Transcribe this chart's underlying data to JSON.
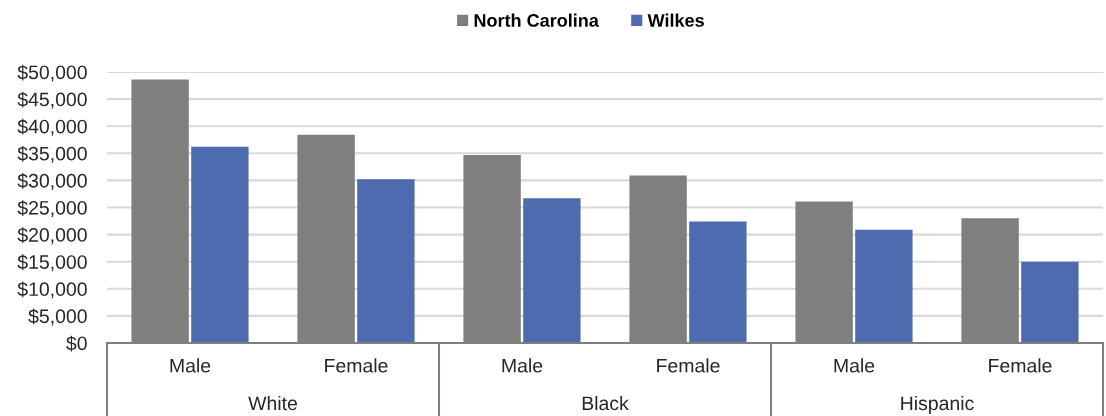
{
  "chart_data": {
    "type": "bar",
    "categories": [
      "Male",
      "Female",
      "Male",
      "Female",
      "Male",
      "Female"
    ],
    "series": [
      {
        "name": "North Carolina",
        "color": "#7f7f7f",
        "values": [
          48600,
          38400,
          34700,
          30900,
          26100,
          23000
        ]
      },
      {
        "name": "Wilkes",
        "color": "#4f6bb0",
        "values": [
          36200,
          30200,
          26700,
          22400,
          20900,
          15000
        ]
      }
    ],
    "ylim": [
      0,
      50000
    ],
    "yticks": [
      {
        "value": 0,
        "label": "$0"
      },
      {
        "value": 5000,
        "label": "$5,000"
      },
      {
        "value": 10000,
        "label": "$10,000"
      },
      {
        "value": 15000,
        "label": "$15,000"
      },
      {
        "value": 20000,
        "label": "$20,000"
      },
      {
        "value": 25000,
        "label": "$25,000"
      },
      {
        "value": 30000,
        "label": "$30,000"
      },
      {
        "value": 35000,
        "label": "$35,000"
      },
      {
        "value": 40000,
        "label": "$40,000"
      },
      {
        "value": 45000,
        "label": "$45,000"
      },
      {
        "value": 50000,
        "label": "$50,000"
      }
    ],
    "grid": "y",
    "legend": "top",
    "annotations": [
      "White",
      "Black",
      "Hispanic"
    ]
  }
}
